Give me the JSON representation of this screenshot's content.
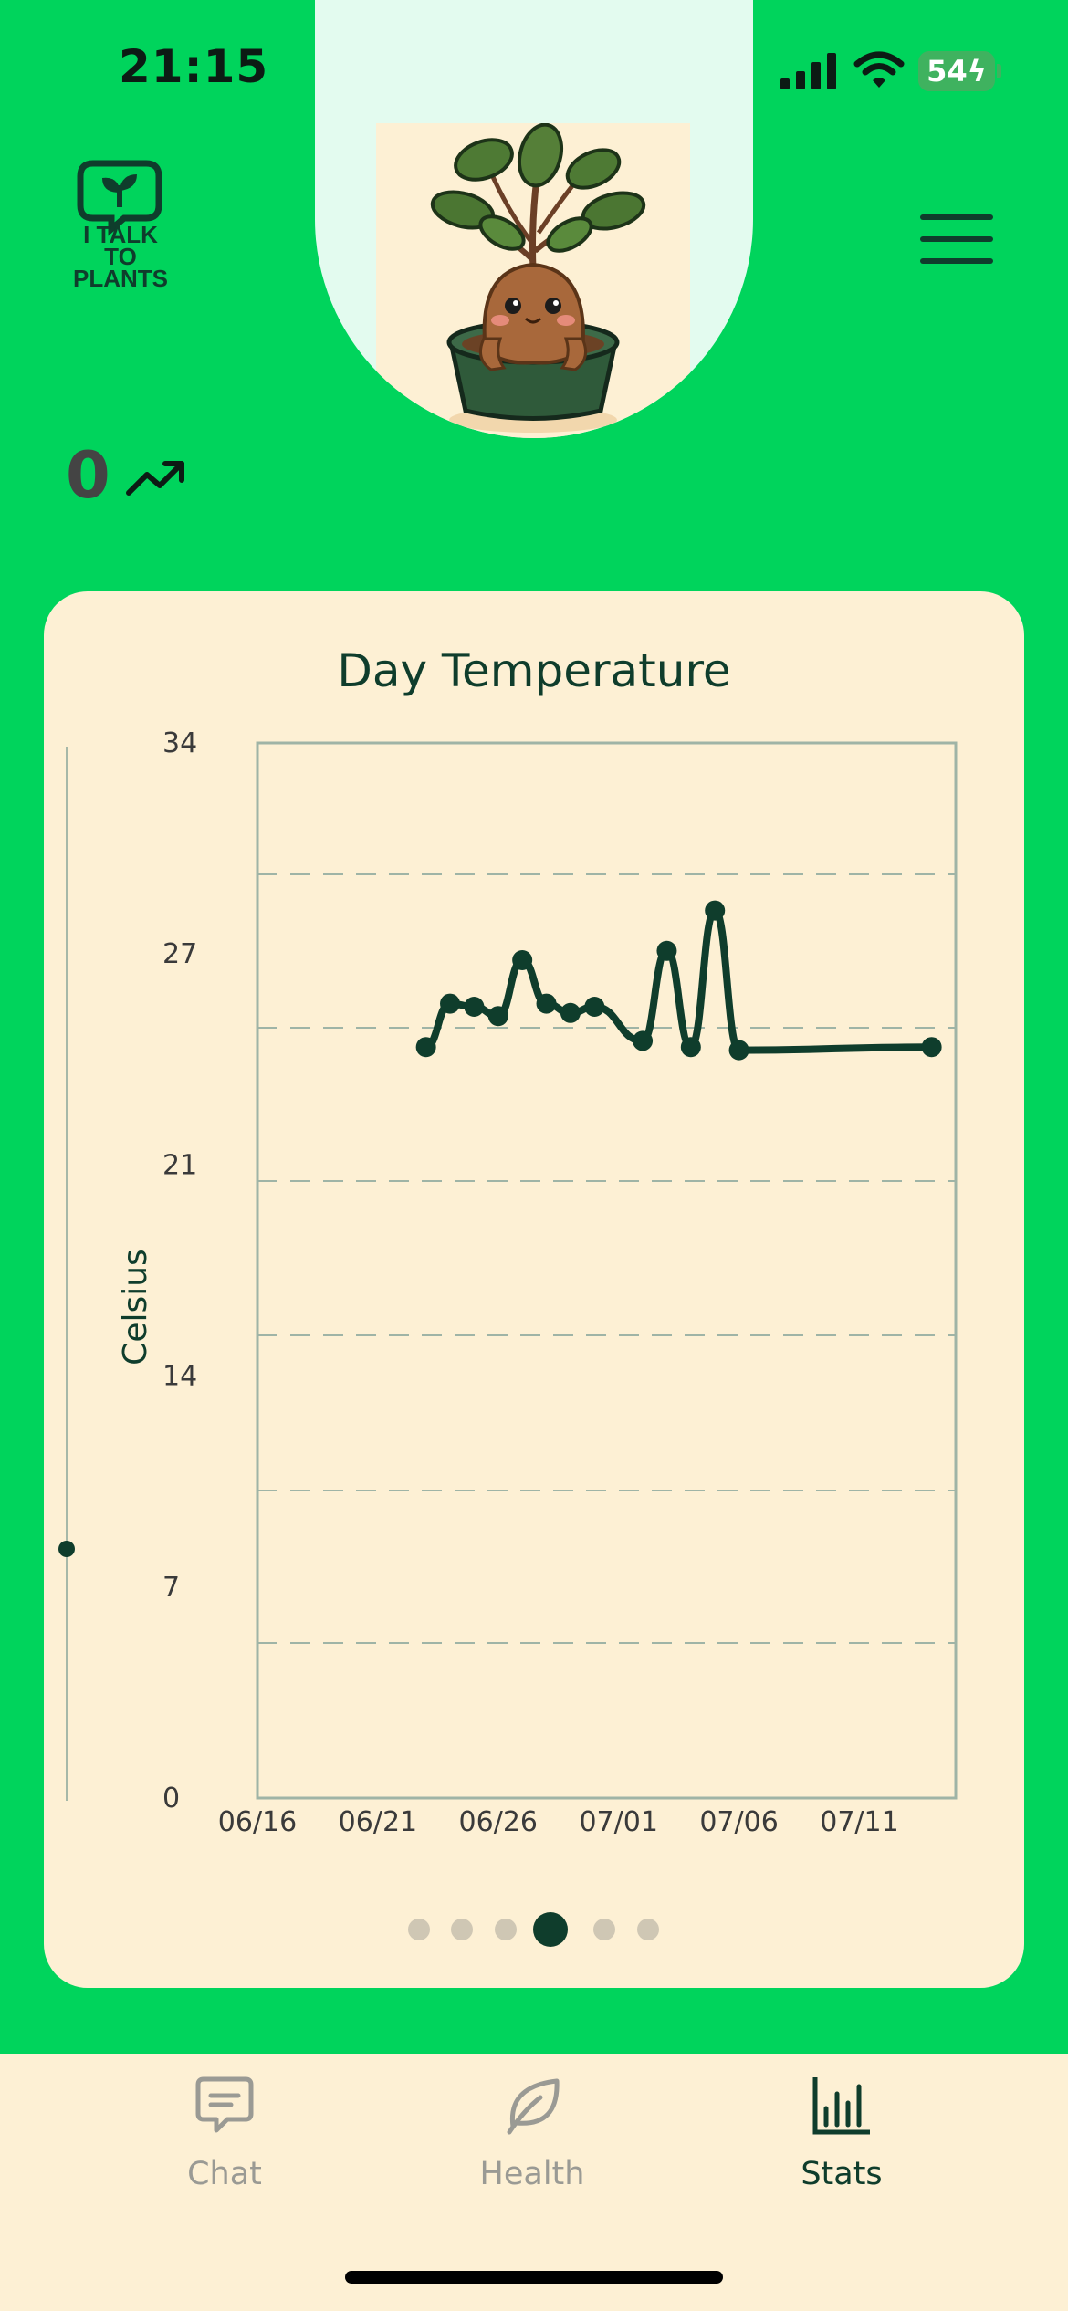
{
  "status_bar": {
    "time": "21:15",
    "battery": "54"
  },
  "brand": {
    "logo_line1": "I TALK",
    "logo_line2": "TO",
    "logo_line3": "PLANTS"
  },
  "streak": {
    "count": "0"
  },
  "chart_data": {
    "type": "line",
    "title": "Day Temperature",
    "ylabel": "Celsius",
    "xlabel": "",
    "ylim": [
      0,
      34
    ],
    "yticks": [
      "34",
      "27",
      "21",
      "14",
      "7",
      "0"
    ],
    "xticks": [
      "06/16",
      "06/21",
      "06/26",
      "07/01",
      "07/06",
      "07/11"
    ],
    "x_range_days": [
      0,
      29
    ],
    "grid": "horizontal-dashed",
    "series": [
      {
        "x": [
          "06/23",
          "06/24",
          "06/25",
          "06/26",
          "06/27",
          "06/28",
          "06/29",
          "06/30",
          "07/02",
          "07/03",
          "07/04",
          "07/05",
          "07/06",
          "07/14"
        ],
        "y": [
          24.2,
          25.6,
          25.5,
          25.2,
          27.0,
          25.6,
          25.3,
          25.5,
          24.4,
          27.3,
          24.2,
          28.6,
          24.1,
          24.2
        ]
      }
    ]
  },
  "pager": {
    "pages": 6,
    "active": 3
  },
  "tabs": [
    {
      "label": "Chat",
      "icon": "chat-icon"
    },
    {
      "label": "Health",
      "icon": "leaf-icon"
    },
    {
      "label": "Stats",
      "icon": "bar-chart-icon"
    }
  ],
  "colors": {
    "background": "#00d45c",
    "card": "#fdf0d4",
    "accent": "#0f3d2c",
    "inactive": "#9a9a94"
  }
}
